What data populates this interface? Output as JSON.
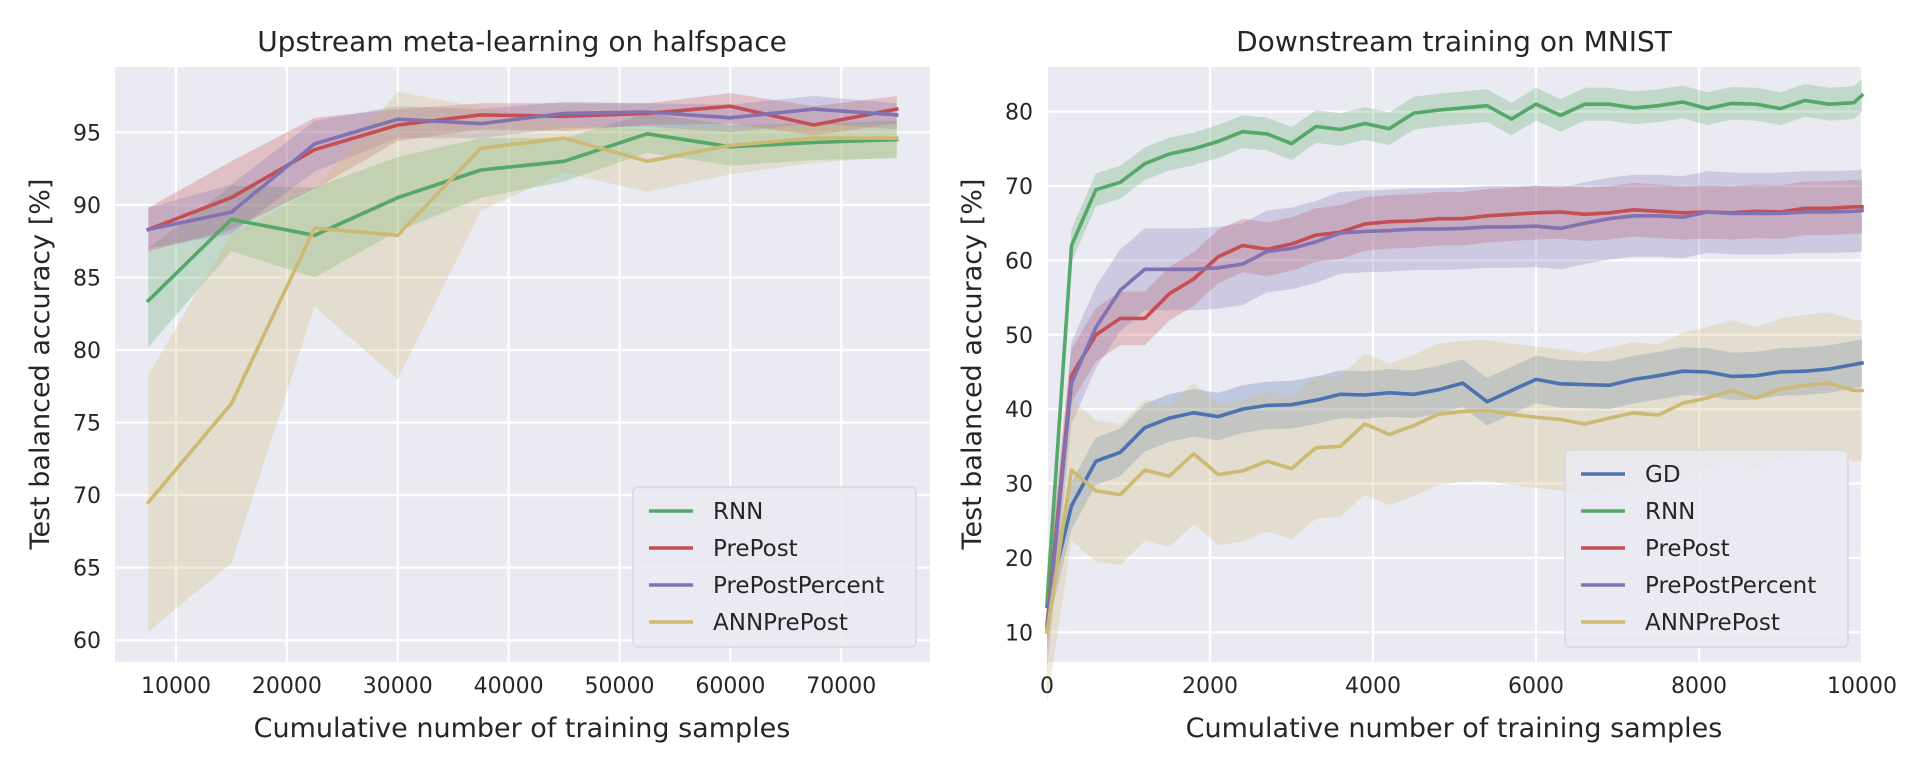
{
  "colors": {
    "background": "#eaeaf2",
    "grid": "#ffffff",
    "text": "#262626",
    "GD": "#4c72b0",
    "RNN": "#55a868",
    "PrePost": "#c44e52",
    "PrePostPercent": "#8172b2",
    "ANNPrePost": "#ccb974"
  },
  "chart_data": [
    {
      "type": "line",
      "title": "Upstream meta-learning on halfspace",
      "xlabel": "Cumulative number of training samples",
      "ylabel": "Test balanced accuracy [%]",
      "xlim": [
        4500,
        78000
      ],
      "ylim": [
        58.5,
        99.5
      ],
      "xticks": [
        10000,
        20000,
        30000,
        40000,
        50000,
        60000,
        70000
      ],
      "xtick_labels": [
        "10000",
        "20000",
        "30000",
        "40000",
        "50000",
        "60000",
        "70000"
      ],
      "yticks": [
        60,
        65,
        70,
        75,
        80,
        85,
        90,
        95
      ],
      "ytick_labels": [
        "60",
        "65",
        "70",
        "75",
        "80",
        "85",
        "90",
        "95"
      ],
      "grid": true,
      "legend_position": "lower-right",
      "x": [
        7500,
        15000,
        22500,
        30000,
        37500,
        45000,
        52500,
        60000,
        67500,
        75000
      ],
      "series": [
        {
          "name": "RNN",
          "color_key": "RNN",
          "values": [
            83.4,
            89.0,
            87.9,
            90.5,
            92.4,
            93.0,
            94.9,
            94.0,
            94.3,
            94.5
          ],
          "lower": [
            80.2,
            86.8,
            85.0,
            88.2,
            90.5,
            91.6,
            93.6,
            92.7,
            93.1,
            93.2
          ],
          "upper": [
            87.0,
            91.3,
            91.2,
            93.3,
            94.6,
            94.6,
            96.3,
            95.5,
            95.6,
            95.8
          ]
        },
        {
          "name": "PrePost",
          "color_key": "PrePost",
          "values": [
            88.3,
            90.5,
            93.8,
            95.5,
            96.2,
            96.1,
            96.3,
            96.8,
            95.5,
            96.6
          ],
          "lower": [
            86.8,
            88.3,
            91.1,
            94.4,
            95.2,
            95.1,
            95.5,
            95.6,
            94.8,
            95.6
          ],
          "upper": [
            89.8,
            93.0,
            96.0,
            96.6,
            97.0,
            97.0,
            97.0,
            97.7,
            96.8,
            97.5
          ]
        },
        {
          "name": "PrePostPercent",
          "color_key": "PrePostPercent",
          "values": [
            88.3,
            89.5,
            94.2,
            95.9,
            95.6,
            96.3,
            96.4,
            96.0,
            96.6,
            96.2
          ],
          "lower": [
            87.0,
            88.0,
            92.3,
            94.6,
            94.6,
            95.3,
            95.4,
            95.0,
            95.6,
            95.2
          ],
          "upper": [
            89.8,
            91.4,
            95.8,
            96.8,
            96.6,
            97.1,
            97.0,
            96.9,
            97.5,
            97.0
          ]
        },
        {
          "name": "ANNPrePost",
          "color_key": "ANNPrePost",
          "values": [
            69.5,
            76.3,
            88.4,
            87.9,
            93.9,
            94.6,
            93.0,
            94.1,
            94.6,
            94.6
          ],
          "lower": [
            60.6,
            65.3,
            83.0,
            78.0,
            89.6,
            92.2,
            90.9,
            92.1,
            92.9,
            93.3
          ],
          "upper": [
            78.3,
            88.0,
            91.0,
            97.8,
            96.7,
            95.6,
            95.2,
            95.5,
            95.5,
            95.6
          ]
        }
      ],
      "legend": {
        "entries": [
          "RNN",
          "PrePost",
          "PrePostPercent",
          "ANNPrePost"
        ]
      }
    },
    {
      "type": "line",
      "title": "Downstream training on MNIST",
      "xlabel": "Cumulative number of training samples",
      "ylabel": "Test balanced accuracy [%]",
      "xlim": [
        0,
        10000
      ],
      "ylim": [
        6,
        86
      ],
      "xticks": [
        0,
        2000,
        4000,
        6000,
        8000,
        10000
      ],
      "xtick_labels": [
        "0",
        "2000",
        "4000",
        "6000",
        "8000",
        "10000"
      ],
      "yticks": [
        10,
        20,
        30,
        40,
        50,
        60,
        70,
        80
      ],
      "ytick_labels": [
        "10",
        "20",
        "30",
        "40",
        "50",
        "60",
        "70",
        "80"
      ],
      "grid": true,
      "legend_position": "lower-right",
      "x": [
        0,
        300,
        600,
        900,
        1200,
        1500,
        1800,
        2100,
        2400,
        2700,
        3000,
        3300,
        3600,
        3900,
        4200,
        4500,
        4800,
        5100,
        5400,
        5700,
        6000,
        6300,
        6600,
        6900,
        7200,
        7500,
        7800,
        8100,
        8400,
        8700,
        9000,
        9300,
        9600,
        9900,
        10000
      ],
      "series": [
        {
          "name": "GD",
          "color_key": "GD",
          "values": [
            13.5,
            27.0,
            33.0,
            34.2,
            37.5,
            38.8,
            39.5,
            39.0,
            40.0,
            40.5,
            40.6,
            41.2,
            42.0,
            41.9,
            42.2,
            42.0,
            42.6,
            43.5,
            41.0,
            42.5,
            44.0,
            43.4,
            43.3,
            43.2,
            44.0,
            44.5,
            45.1,
            45.0,
            44.4,
            44.5,
            45.0,
            45.1,
            45.4,
            46.0,
            46.2
          ],
          "spread": 3.2
        },
        {
          "name": "RNN",
          "color_key": "RNN",
          "values": [
            14.0,
            62.0,
            69.5,
            70.5,
            73.0,
            74.3,
            75.0,
            76.0,
            77.3,
            77.0,
            75.7,
            78.0,
            77.6,
            78.4,
            77.7,
            79.8,
            80.2,
            80.5,
            80.8,
            79.0,
            81.0,
            79.5,
            81.0,
            81.0,
            80.5,
            80.8,
            81.3,
            80.4,
            81.1,
            81.0,
            80.4,
            81.5,
            81.0,
            81.2,
            82.2
          ],
          "spread": 2.2
        },
        {
          "name": "PrePost",
          "color_key": "PrePost",
          "values": [
            11.0,
            44.5,
            50.0,
            52.2,
            52.2,
            55.5,
            57.5,
            60.5,
            62.0,
            61.5,
            62.2,
            63.4,
            63.8,
            64.9,
            65.2,
            65.3,
            65.6,
            65.6,
            66.0,
            66.2,
            66.4,
            66.5,
            66.2,
            66.4,
            66.8,
            66.6,
            66.4,
            66.5,
            66.4,
            66.6,
            66.5,
            67.0,
            67.0,
            67.2,
            67.2
          ],
          "spread": 3.6
        },
        {
          "name": "PrePostPercent",
          "color_key": "PrePostPercent",
          "values": [
            10.5,
            43.5,
            51.0,
            56.0,
            58.8,
            58.8,
            58.8,
            59.0,
            59.5,
            61.2,
            61.6,
            62.5,
            63.7,
            63.9,
            64.0,
            64.2,
            64.2,
            64.3,
            64.5,
            64.5,
            64.6,
            64.3,
            65.0,
            65.6,
            66.0,
            66.0,
            65.8,
            66.5,
            66.3,
            66.3,
            66.3,
            66.5,
            66.5,
            66.6,
            66.7
          ],
          "spread": 5.5
        },
        {
          "name": "ANNPrePost",
          "color_key": "ANNPrePost",
          "values": [
            10.0,
            31.8,
            29.0,
            28.5,
            31.8,
            31.0,
            34.0,
            31.2,
            31.7,
            33.0,
            32.0,
            34.8,
            35.0,
            38.0,
            36.6,
            37.8,
            39.3,
            39.7,
            39.8,
            39.3,
            38.9,
            38.6,
            38.0,
            38.8,
            39.5,
            39.2,
            40.8,
            41.5,
            42.5,
            41.5,
            42.7,
            43.2,
            43.5,
            42.5,
            42.5
          ],
          "spread": 9.5
        }
      ],
      "legend": {
        "entries": [
          "GD",
          "RNN",
          "PrePost",
          "PrePostPercent",
          "ANNPrePost"
        ]
      }
    }
  ]
}
